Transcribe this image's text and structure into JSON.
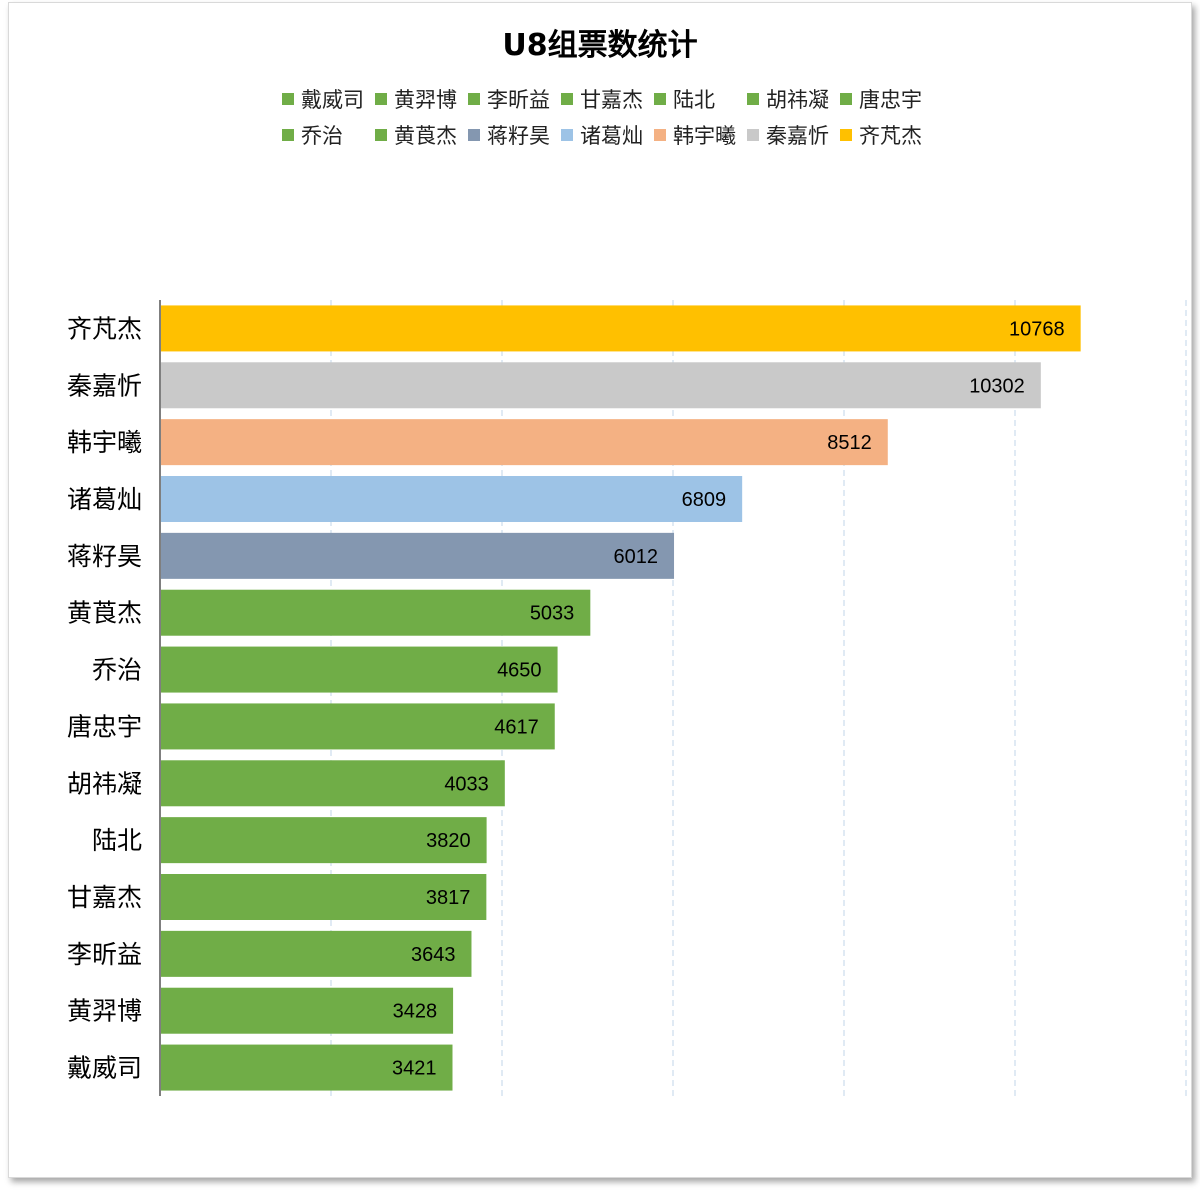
{
  "chart_data": {
    "type": "bar",
    "orientation": "horizontal",
    "title": "U8组票数统计",
    "categories": [
      "齐芃杰",
      "秦嘉忻",
      "韩宇曦",
      "诸葛灿",
      "蒋籽昊",
      "黄莨杰",
      "乔治",
      "唐忠宇",
      "胡祎凝",
      "陆北",
      "甘嘉杰",
      "李昕益",
      "黄羿博",
      "戴威司"
    ],
    "values": [
      10768,
      10302,
      8512,
      6809,
      6012,
      5033,
      4650,
      4617,
      4033,
      3820,
      3817,
      3643,
      3428,
      3421
    ],
    "colors": [
      "#FFC000",
      "#C9C9C9",
      "#F4B183",
      "#9DC3E6",
      "#8497B0",
      "#70AD47",
      "#70AD47",
      "#70AD47",
      "#70AD47",
      "#70AD47",
      "#70AD47",
      "#70AD47",
      "#70AD47",
      "#70AD47"
    ],
    "legend": {
      "placement": "top",
      "entries": [
        {
          "name": "戴威司",
          "color": "#70AD47"
        },
        {
          "name": "黄羿博",
          "color": "#70AD47"
        },
        {
          "name": "李昕益",
          "color": "#70AD47"
        },
        {
          "name": "甘嘉杰",
          "color": "#70AD47"
        },
        {
          "name": "陆北",
          "color": "#70AD47"
        },
        {
          "name": "胡祎凝",
          "color": "#70AD47"
        },
        {
          "name": "唐忠宇",
          "color": "#70AD47"
        },
        {
          "name": "乔治",
          "color": "#70AD47"
        },
        {
          "name": "黄莨杰",
          "color": "#70AD47"
        },
        {
          "name": "蒋籽昊",
          "color": "#8497B0"
        },
        {
          "name": "诸葛灿",
          "color": "#9DC3E6"
        },
        {
          "name": "韩宇曦",
          "color": "#F4B183"
        },
        {
          "name": "秦嘉忻",
          "color": "#C9C9C9"
        },
        {
          "name": "齐芃杰",
          "color": "#FFC000"
        }
      ]
    },
    "xlim": [
      0,
      12000
    ],
    "x_gridlines": [
      0,
      2000,
      4000,
      6000,
      8000,
      10000,
      12000
    ],
    "grid": true,
    "data_labels": true,
    "xlabel": "",
    "ylabel": ""
  }
}
